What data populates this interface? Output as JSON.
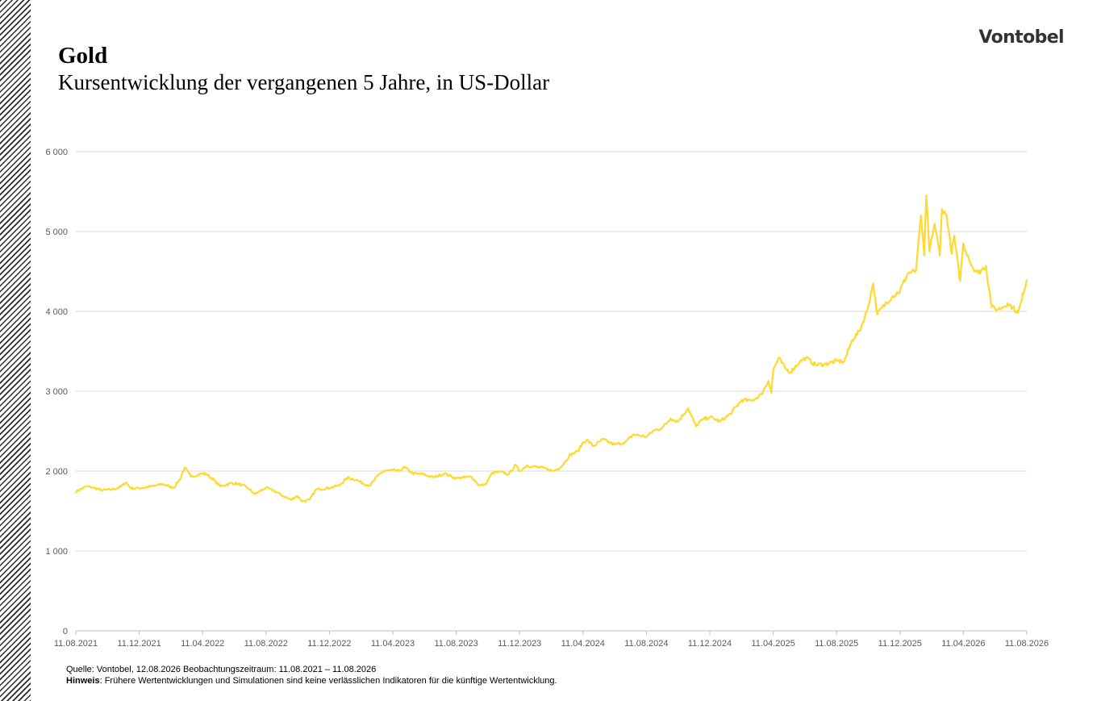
{
  "header": {
    "title": "Gold",
    "subtitle": "Kursentwicklung der vergangenen 5 Jahre, in US-Dollar",
    "logo": "Vontobel"
  },
  "footer": {
    "source": "Quelle: Vontobel, 12.08.2026 Beobachtungszeitraum: 11.08.2021 – 11.08.2026",
    "note_label": "Hinweis",
    "note_text": ":  Frühere Wertentwicklungen und Simulationen sind keine verlässlichen Indikatoren für die künftige Wertentwicklung."
  },
  "chart_data": {
    "type": "line",
    "title": "Gold",
    "subtitle": "Kursentwicklung der vergangenen 5 Jahre, in US-Dollar",
    "xlabel": "",
    "ylabel": "",
    "ylim": [
      0,
      6000
    ],
    "yticks": [
      0,
      1000,
      2000,
      3000,
      4000,
      5000,
      6000
    ],
    "ytick_labels": [
      "0",
      "1 000",
      "2 000",
      "3 000",
      "4 000",
      "5 000",
      "6 000"
    ],
    "x_range": [
      "2021-08-11",
      "2026-08-11"
    ],
    "xtick_labels": [
      "11.08.2021",
      "11.12.2021",
      "11.04.2022",
      "11.08.2022",
      "11.12.2022",
      "11.04.2023",
      "11.08.2023",
      "11.12.2023",
      "11.04.2024",
      "11.08.2024",
      "11.12.2024",
      "11.04.2025",
      "11.08.2025",
      "11.12.2025",
      "11.04.2026",
      "11.08.2026"
    ],
    "grid": true,
    "line_color": "#FFD92E",
    "series": [
      {
        "name": "",
        "x": [
          "2021-08-11",
          "2021-09-01",
          "2021-09-15",
          "2021-10-01",
          "2021-10-20",
          "2021-11-05",
          "2021-11-16",
          "2021-11-25",
          "2021-12-11",
          "2022-01-05",
          "2022-01-25",
          "2022-02-15",
          "2022-03-01",
          "2022-03-08",
          "2022-03-20",
          "2022-04-11",
          "2022-04-20",
          "2022-05-05",
          "2022-05-16",
          "2022-06-05",
          "2022-06-20",
          "2022-07-05",
          "2022-07-21",
          "2022-08-11",
          "2022-08-25",
          "2022-09-10",
          "2022-09-28",
          "2022-10-10",
          "2022-10-20",
          "2022-11-03",
          "2022-11-15",
          "2022-12-11",
          "2022-12-30",
          "2023-01-15",
          "2023-02-01",
          "2023-02-15",
          "2023-02-28",
          "2023-03-15",
          "2023-03-25",
          "2023-04-11",
          "2023-04-25",
          "2023-05-04",
          "2023-05-20",
          "2023-06-10",
          "2023-06-29",
          "2023-07-20",
          "2023-08-11",
          "2023-08-25",
          "2023-09-10",
          "2023-09-25",
          "2023-10-06",
          "2023-10-20",
          "2023-11-05",
          "2023-11-20",
          "2023-12-04",
          "2023-12-11",
          "2023-12-25",
          "2024-01-15",
          "2024-02-01",
          "2024-02-14",
          "2024-03-01",
          "2024-03-15",
          "2024-04-01",
          "2024-04-11",
          "2024-04-20",
          "2024-05-01",
          "2024-05-20",
          "2024-06-10",
          "2024-07-01",
          "2024-07-17",
          "2024-08-11",
          "2024-08-25",
          "2024-09-10",
          "2024-09-26",
          "2024-10-10",
          "2024-10-30",
          "2024-11-14",
          "2024-11-25",
          "2024-12-11",
          "2024-12-30",
          "2025-01-20",
          "2025-02-10",
          "2025-02-28",
          "2025-03-20",
          "2025-04-02",
          "2025-04-08",
          "2025-04-11",
          "2025-04-22",
          "2025-05-05",
          "2025-05-15",
          "2025-06-01",
          "2025-06-13",
          "2025-07-01",
          "2025-07-20",
          "2025-08-11",
          "2025-08-25",
          "2025-09-10",
          "2025-09-25",
          "2025-10-08",
          "2025-10-20",
          "2025-10-28",
          "2025-11-12",
          "2025-11-25",
          "2025-12-11",
          "2025-12-26",
          "2026-01-10",
          "2026-01-20",
          "2026-01-26",
          "2026-01-30",
          "2026-02-05",
          "2026-02-15",
          "2026-02-25",
          "2026-03-01",
          "2026-03-10",
          "2026-03-20",
          "2026-03-25",
          "2026-04-05",
          "2026-04-11",
          "2026-04-20",
          "2026-04-28",
          "2026-05-10",
          "2026-05-25",
          "2026-06-05",
          "2026-06-15",
          "2026-06-25",
          "2026-07-05",
          "2026-07-15",
          "2026-07-25",
          "2026-08-02",
          "2026-08-11"
        ],
        "values": [
          1740,
          1810,
          1790,
          1760,
          1770,
          1800,
          1860,
          1785,
          1785,
          1810,
          1840,
          1790,
          1920,
          2045,
          1930,
          1970,
          1960,
          1880,
          1810,
          1850,
          1840,
          1800,
          1710,
          1790,
          1760,
          1700,
          1640,
          1690,
          1620,
          1640,
          1770,
          1790,
          1820,
          1920,
          1890,
          1840,
          1820,
          1950,
          2000,
          2010,
          2000,
          2050,
          1970,
          1960,
          1920,
          1970,
          1910,
          1920,
          1930,
          1820,
          1830,
          1980,
          1990,
          1960,
          2080,
          2000,
          2070,
          2050,
          2030,
          2000,
          2060,
          2190,
          2250,
          2360,
          2390,
          2310,
          2400,
          2330,
          2360,
          2460,
          2430,
          2510,
          2540,
          2660,
          2620,
          2790,
          2560,
          2640,
          2680,
          2620,
          2720,
          2890,
          2880,
          2960,
          3130,
          2980,
          3250,
          3420,
          3280,
          3240,
          3370,
          3420,
          3330,
          3340,
          3380,
          3370,
          3640,
          3760,
          4000,
          4350,
          3960,
          4090,
          4180,
          4260,
          4480,
          4500,
          5200,
          4700,
          5450,
          4750,
          5100,
          4700,
          5280,
          5200,
          4720,
          4950,
          4380,
          4850,
          4700,
          4560,
          4480,
          4570,
          4050,
          4020,
          4050,
          4100,
          4050,
          3980,
          4150,
          4400
        ]
      }
    ]
  }
}
